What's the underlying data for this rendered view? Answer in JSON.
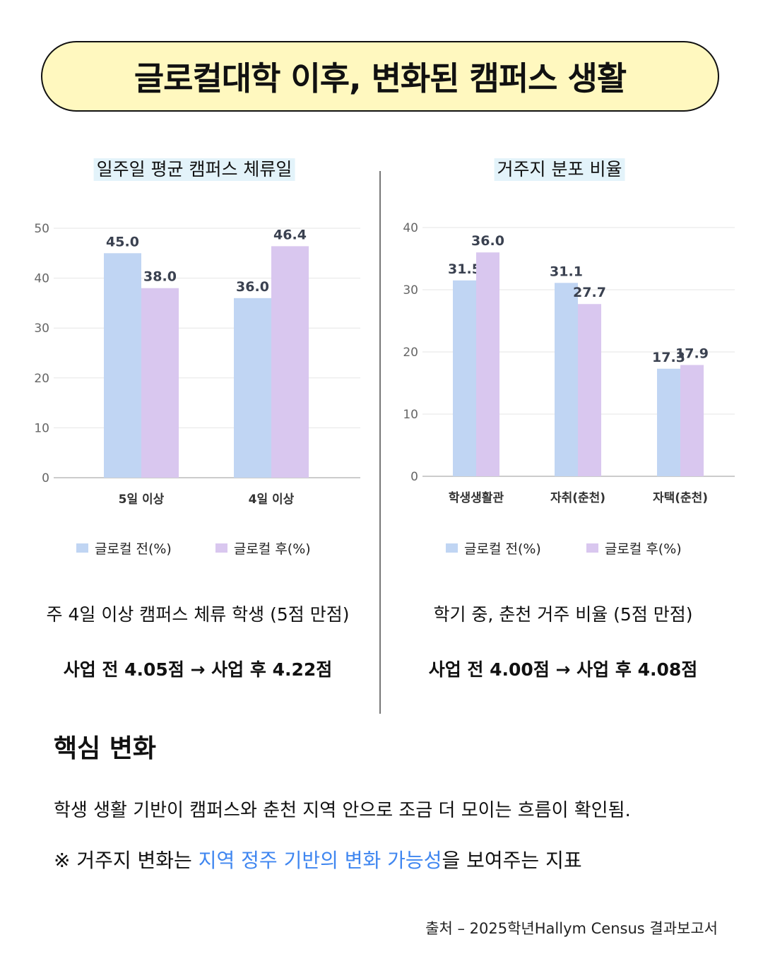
{
  "header": {
    "title": "글로컬대학 이후, 변화된 캠퍼스 생활"
  },
  "colors": {
    "before": "#c0d5f3",
    "after": "#d9c7ef",
    "highlight": "#3f86f0",
    "banner": "#fff8bf"
  },
  "chart_data": [
    {
      "type": "bar",
      "title": "일주일 평균 캠퍼스 체류일",
      "categories": [
        "5일 이상",
        "4일 이상"
      ],
      "series": [
        {
          "name": "글로컬 전(%)",
          "values": [
            45.0,
            36.0
          ]
        },
        {
          "name": "글로컬 후(%)",
          "values": [
            38.0,
            46.4
          ]
        }
      ],
      "value_labels": [
        [
          "45.0",
          "36.0"
        ],
        [
          "38.0",
          "46.4"
        ]
      ],
      "yticks": [
        0,
        10,
        20,
        30,
        40,
        50
      ],
      "ylim": [
        0,
        50
      ],
      "grid": true,
      "legend": "bottom"
    },
    {
      "type": "bar",
      "title": "거주지 분포 비율",
      "categories": [
        "학생생활관",
        "자취(춘천)",
        "자택(춘천)"
      ],
      "series": [
        {
          "name": "글로컬 전(%)",
          "values": [
            31.5,
            31.1,
            17.3
          ]
        },
        {
          "name": "글로컬 후(%)",
          "values": [
            36.0,
            27.7,
            17.9
          ]
        }
      ],
      "value_labels": [
        [
          "31.5",
          "31.1",
          "17.3"
        ],
        [
          "36.0",
          "27.7",
          "17.9"
        ]
      ],
      "yticks": [
        0,
        10,
        20,
        30,
        40
      ],
      "ylim": [
        0,
        40
      ],
      "grid": true,
      "legend": "bottom"
    }
  ],
  "left_note": {
    "line1": "주 4일 이상 캠퍼스 체류 학생 (5점 만점)",
    "line2": "사업 전 4.05점 → 사업 후 4.22점"
  },
  "right_note": {
    "line1": "학기 중, 춘천 거주 비율 (5점 만점)",
    "line2": "사업 전 4.00점 → 사업 후 4.08점"
  },
  "key_change": {
    "title": "핵심 변화",
    "line1": "학생 생활 기반이 캠퍼스와 춘천 지역 안으로 조금 더 모이는 흐름이 확인됨.",
    "line2_prefix": "※ 거주지 변화는 ",
    "line2_highlight": "지역 정주 기반의 변화 가능성",
    "line2_suffix": "을 보여주는 지표"
  },
  "source": "출처 – 2025학년Hallym Census 결과보고서"
}
